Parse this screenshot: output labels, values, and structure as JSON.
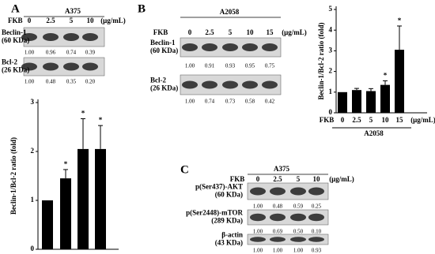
{
  "blots": [
    {
      "label": "A",
      "cell_line": "A375",
      "dose_title": "FKB",
      "doses": [
        "0",
        "2.5",
        "5",
        "10"
      ],
      "unit": "(μg/mL)",
      "rows": [
        {
          "name": "Beclin-1",
          "size": "(60 KDa)",
          "values": [
            "1.00",
            "0.96",
            "0.74",
            "0.39"
          ]
        },
        {
          "name": "Bcl-2",
          "size": "(26 KDa)",
          "values": [
            "1.00",
            "0.48",
            "0.35",
            "0.20"
          ]
        }
      ]
    },
    {
      "label": "B",
      "cell_line": "A2058",
      "dose_title": "FKB",
      "doses": [
        "0",
        "2.5",
        "5",
        "10",
        "15"
      ],
      "unit": "(μg/mL)",
      "rows": [
        {
          "name": "Beclin-1",
          "size": "(60 KDa)",
          "values": [
            "1.00",
            "0.91",
            "0.93",
            "0.95",
            "0.75"
          ]
        },
        {
          "name": "Bcl-2",
          "size": "(26 KDa)",
          "values": [
            "1.00",
            "0.74",
            "0.73",
            "0.58",
            "0.42"
          ]
        }
      ]
    },
    {
      "label": "C",
      "cell_line": "A375",
      "dose_title": "FKB",
      "doses": [
        "0",
        "2.5",
        "5",
        "10"
      ],
      "unit": "(μg/mL)",
      "rows": [
        {
          "name": "p(Ser437)-AKT",
          "size": "(60 KDa)",
          "values": [
            "1.00",
            "0.48",
            "0.59",
            "0.25"
          ]
        },
        {
          "name": "p(Ser2448)-mTOR",
          "size": "(289 KDa)",
          "values": [
            "1.00",
            "0.69",
            "0.50",
            "0.10"
          ]
        },
        {
          "name": "β-actin",
          "size": "(43 KDa)",
          "values": [
            "1.00",
            "1.00",
            "1.00",
            "0.93"
          ]
        }
      ]
    }
  ],
  "chart_data": [
    {
      "type": "bar",
      "ylabel": "Beclin-1/Bcl-2 ratio (fold)",
      "categories": [
        null,
        null,
        null,
        null
      ],
      "values": [
        1,
        1.45,
        2.05,
        2.05
      ],
      "errors": [
        0,
        0.18,
        0.62,
        0.48
      ],
      "significance": [
        null,
        "*",
        "*",
        "*"
      ],
      "color": "#000000",
      "ylim": [
        0,
        3
      ],
      "yticks": [
        0,
        1,
        2,
        3
      ]
    },
    {
      "type": "bar",
      "ylabel": "Beclin-1/Bcl-2 ratio (fold)",
      "x_title": "FKB",
      "unit": "(μg/mL)",
      "xlabel": "A2058",
      "categories": [
        "0",
        "2.5",
        "5",
        "10",
        "15"
      ],
      "values": [
        1,
        1.1,
        1.05,
        1.35,
        3.05
      ],
      "errors": [
        0,
        0.08,
        0.12,
        0.2,
        1.15
      ],
      "significance": [
        null,
        null,
        null,
        "*",
        "*"
      ],
      "color": "#000000",
      "ylim": [
        0,
        5
      ],
      "yticks": [
        0,
        1,
        2,
        3,
        4,
        5
      ]
    }
  ]
}
